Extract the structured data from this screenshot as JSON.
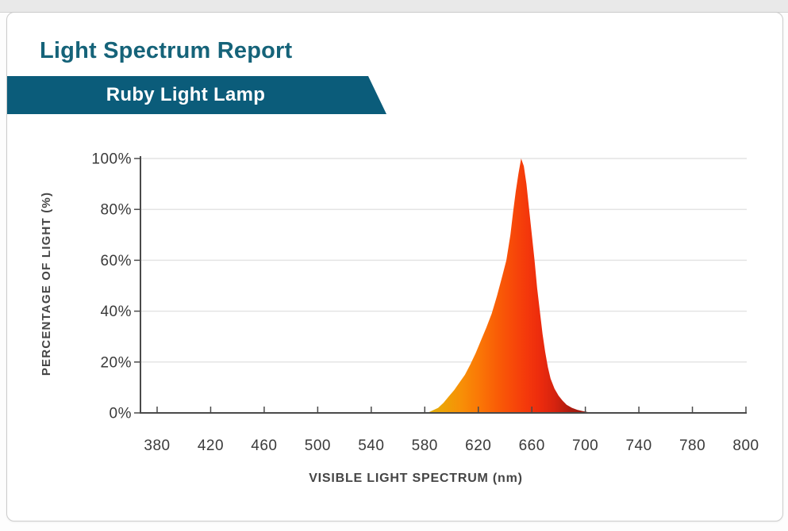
{
  "header": {
    "title": "Light Spectrum Report",
    "badge": "Ruby Light Lamp"
  },
  "colors": {
    "title_text": "#156379",
    "banner_bg": "#0b5c7a",
    "banner_text": "#ffffff",
    "axis": "#4a4a4a",
    "grid": "#e4e4e4",
    "tick_text": "#3a3a3a",
    "axis_title_text": "#454545"
  },
  "chart_data": {
    "type": "area",
    "title": "",
    "xlabel": "VISIBLE LIGHT SPECTRUM (nm)",
    "ylabel": "PERCENTAGE OF LIGHT (%)",
    "x_ticks": [
      "380",
      "420",
      "460",
      "500",
      "540",
      "580",
      "620",
      "660",
      "700",
      "740",
      "780",
      "800"
    ],
    "y_ticks": [
      "0%",
      "20%",
      "40%",
      "60%",
      "80%",
      "100%"
    ],
    "xlim_nm": [
      380,
      800
    ],
    "ylim": [
      0,
      100
    ],
    "grid": "horizontal",
    "legend": "none",
    "series": [
      {
        "name": "Ruby Light Lamp spectrum",
        "peak_nm": 652,
        "peak_percent": 100,
        "points": [
          [
            582,
            0
          ],
          [
            586,
            1
          ],
          [
            590,
            2
          ],
          [
            594,
            4
          ],
          [
            598,
            6.5
          ],
          [
            602,
            9
          ],
          [
            606,
            12
          ],
          [
            610,
            15
          ],
          [
            614,
            19
          ],
          [
            618,
            23.5
          ],
          [
            622,
            28.5
          ],
          [
            626,
            33.5
          ],
          [
            630,
            39
          ],
          [
            634,
            46
          ],
          [
            638,
            54
          ],
          [
            641,
            60
          ],
          [
            644,
            70
          ],
          [
            646,
            79
          ],
          [
            648,
            87
          ],
          [
            650,
            94
          ],
          [
            652,
            100
          ],
          [
            654,
            97
          ],
          [
            656,
            90
          ],
          [
            658,
            80
          ],
          [
            660,
            70
          ],
          [
            662,
            60
          ],
          [
            664,
            49
          ],
          [
            666,
            40
          ],
          [
            668,
            31
          ],
          [
            670,
            24
          ],
          [
            672,
            18
          ],
          [
            674,
            13.5
          ],
          [
            677,
            9.5
          ],
          [
            680,
            6.8
          ],
          [
            683,
            4.8
          ],
          [
            686,
            3.2
          ],
          [
            690,
            2
          ],
          [
            694,
            1.2
          ],
          [
            698,
            0.7
          ],
          [
            702,
            0.3
          ],
          [
            706,
            0
          ]
        ]
      }
    ],
    "gradient_stops": [
      {
        "offset": 0.0,
        "color": "#d9ae10"
      },
      {
        "offset": 0.09,
        "color": "#eda306"
      },
      {
        "offset": 0.2,
        "color": "#f79007"
      },
      {
        "offset": 0.3,
        "color": "#fa7a06"
      },
      {
        "offset": 0.42,
        "color": "#f95d06"
      },
      {
        "offset": 0.52,
        "color": "#f74809"
      },
      {
        "offset": 0.6,
        "color": "#f4380b"
      },
      {
        "offset": 0.68,
        "color": "#ec2b0d"
      },
      {
        "offset": 0.77,
        "color": "#d5230f"
      },
      {
        "offset": 0.86,
        "color": "#ad1c10"
      },
      {
        "offset": 1.0,
        "color": "#8a170d"
      }
    ]
  }
}
